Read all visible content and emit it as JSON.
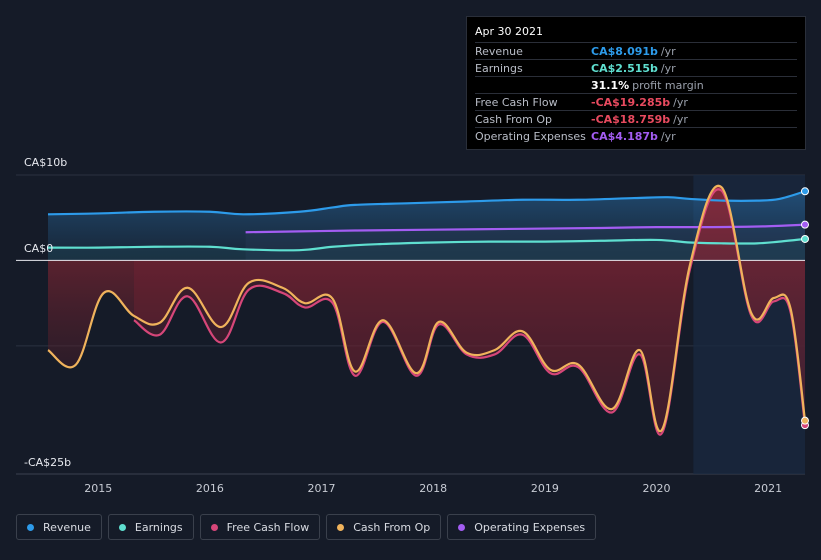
{
  "chart_data": {
    "type": "area",
    "y_axis_labels": {
      "top": "CA$10b",
      "zero": "CA$0",
      "bottom": "-CA$25b"
    },
    "ylim": [
      -25,
      10
    ],
    "x_ticks": [
      "2015",
      "2016",
      "2017",
      "2018",
      "2019",
      "2020",
      "2021"
    ],
    "xlim": [
      2014.55,
      2021.33
    ],
    "highlight_from": 2020.33,
    "series": [
      {
        "name": "Revenue",
        "color": "#2d9bea",
        "points": [
          [
            2014.55,
            5.4
          ],
          [
            2015.0,
            5.5
          ],
          [
            2015.5,
            5.7
          ],
          [
            2016.0,
            5.7
          ],
          [
            2016.3,
            5.4
          ],
          [
            2016.8,
            5.7
          ],
          [
            2017.1,
            6.2
          ],
          [
            2017.3,
            6.5
          ],
          [
            2017.8,
            6.7
          ],
          [
            2018.3,
            6.9
          ],
          [
            2018.8,
            7.1
          ],
          [
            2019.3,
            7.1
          ],
          [
            2019.8,
            7.3
          ],
          [
            2020.1,
            7.4
          ],
          [
            2020.3,
            7.2
          ],
          [
            2020.6,
            7.0
          ],
          [
            2020.9,
            7.0
          ],
          [
            2021.1,
            7.2
          ],
          [
            2021.33,
            8.091
          ]
        ]
      },
      {
        "name": "Earnings",
        "color": "#5fdfd0",
        "points": [
          [
            2014.55,
            1.5
          ],
          [
            2015.0,
            1.5
          ],
          [
            2015.5,
            1.6
          ],
          [
            2016.0,
            1.6
          ],
          [
            2016.3,
            1.3
          ],
          [
            2016.8,
            1.2
          ],
          [
            2017.1,
            1.6
          ],
          [
            2017.5,
            1.9
          ],
          [
            2018.0,
            2.1
          ],
          [
            2018.5,
            2.2
          ],
          [
            2019.0,
            2.2
          ],
          [
            2019.5,
            2.3
          ],
          [
            2020.0,
            2.4
          ],
          [
            2020.3,
            2.1
          ],
          [
            2020.6,
            2.0
          ],
          [
            2020.9,
            2.0
          ],
          [
            2021.1,
            2.2
          ],
          [
            2021.33,
            2.515
          ]
        ]
      },
      {
        "name": "Operating Expenses",
        "color": "#a35df2",
        "points": [
          [
            2016.32,
            3.3
          ],
          [
            2016.8,
            3.4
          ],
          [
            2017.3,
            3.5
          ],
          [
            2018.0,
            3.6
          ],
          [
            2018.8,
            3.7
          ],
          [
            2019.5,
            3.8
          ],
          [
            2020.0,
            3.9
          ],
          [
            2020.5,
            3.9
          ],
          [
            2021.0,
            4.0
          ],
          [
            2021.33,
            4.187
          ]
        ]
      },
      {
        "name": "Free Cash Flow",
        "color": "#d64679",
        "points": [
          [
            2015.32,
            -7
          ],
          [
            2015.55,
            -8.7
          ],
          [
            2015.8,
            -4.2
          ],
          [
            2016.1,
            -9.6
          ],
          [
            2016.35,
            -3.4
          ],
          [
            2016.65,
            -3.8
          ],
          [
            2016.85,
            -5.5
          ],
          [
            2017.1,
            -5.0
          ],
          [
            2017.3,
            -13.5
          ],
          [
            2017.55,
            -7.2
          ],
          [
            2017.85,
            -13.5
          ],
          [
            2018.05,
            -7.5
          ],
          [
            2018.3,
            -11.0
          ],
          [
            2018.55,
            -11.0
          ],
          [
            2018.8,
            -8.7
          ],
          [
            2019.05,
            -13.2
          ],
          [
            2019.3,
            -12.5
          ],
          [
            2019.6,
            -17.8
          ],
          [
            2019.85,
            -11.0
          ],
          [
            2020.05,
            -20.2
          ],
          [
            2020.3,
            -1.0
          ],
          [
            2020.58,
            8.2
          ],
          [
            2020.85,
            -6.5
          ],
          [
            2021.05,
            -4.8
          ],
          [
            2021.2,
            -6.0
          ],
          [
            2021.33,
            -19.285
          ]
        ]
      },
      {
        "name": "Cash From Op",
        "color": "#f0b35c",
        "points": [
          [
            2014.55,
            -10.5
          ],
          [
            2014.8,
            -12.2
          ],
          [
            2015.05,
            -3.8
          ],
          [
            2015.32,
            -6.5
          ],
          [
            2015.55,
            -7.3
          ],
          [
            2015.8,
            -3.2
          ],
          [
            2016.1,
            -7.8
          ],
          [
            2016.35,
            -2.6
          ],
          [
            2016.65,
            -3.2
          ],
          [
            2016.85,
            -5.0
          ],
          [
            2017.1,
            -4.5
          ],
          [
            2017.3,
            -13.0
          ],
          [
            2017.55,
            -7.0
          ],
          [
            2017.85,
            -13.2
          ],
          [
            2018.05,
            -7.2
          ],
          [
            2018.3,
            -10.8
          ],
          [
            2018.55,
            -10.5
          ],
          [
            2018.8,
            -8.3
          ],
          [
            2019.05,
            -12.8
          ],
          [
            2019.3,
            -12.2
          ],
          [
            2019.6,
            -17.4
          ],
          [
            2019.85,
            -10.5
          ],
          [
            2020.05,
            -19.8
          ],
          [
            2020.3,
            -0.5
          ],
          [
            2020.58,
            8.6
          ],
          [
            2020.85,
            -6.2
          ],
          [
            2021.05,
            -4.4
          ],
          [
            2021.2,
            -5.6
          ],
          [
            2021.33,
            -18.759
          ]
        ]
      }
    ]
  },
  "tooltip": {
    "date": "Apr 30 2021",
    "rows": [
      {
        "label": "Revenue",
        "value": "CA$8.091b",
        "unit": "/yr",
        "color": "#2d9bea"
      },
      {
        "label": "Earnings",
        "value": "CA$2.515b",
        "unit": "/yr",
        "color": "#5fdfd0"
      },
      {
        "label": "",
        "value": "31.1%",
        "unit": "profit margin",
        "color": "#ffffff"
      },
      {
        "label": "Free Cash Flow",
        "value": "-CA$19.285b",
        "unit": "/yr",
        "color": "#e84a5f"
      },
      {
        "label": "Cash From Op",
        "value": "-CA$18.759b",
        "unit": "/yr",
        "color": "#e84a5f"
      },
      {
        "label": "Operating Expenses",
        "value": "CA$4.187b",
        "unit": "/yr",
        "color": "#a35df2"
      }
    ]
  },
  "legend": [
    {
      "label": "Revenue",
      "color": "#2d9bea"
    },
    {
      "label": "Earnings",
      "color": "#5fdfd0"
    },
    {
      "label": "Free Cash Flow",
      "color": "#d64679"
    },
    {
      "label": "Cash From Op",
      "color": "#f0b35c"
    },
    {
      "label": "Operating Expenses",
      "color": "#a35df2"
    }
  ]
}
